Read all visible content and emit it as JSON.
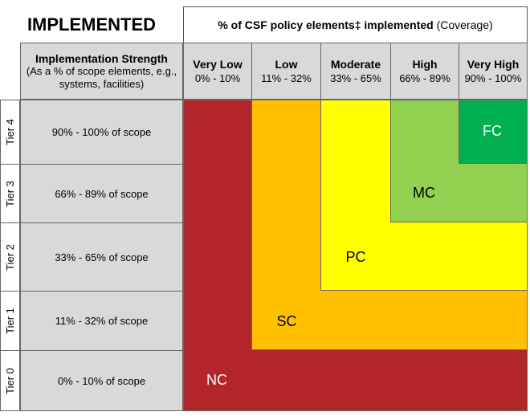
{
  "title": "IMPLEMENTED",
  "coverage": {
    "bold": "% of CSF policy elements‡ implemented",
    "normal": "(Coverage)"
  },
  "strength": {
    "title": "Implementation Strength",
    "subtitle": "(As a % of scope elements, e.g., systems, facilities)"
  },
  "columns": [
    {
      "label": "Very Low",
      "range": "0% - 10%"
    },
    {
      "label": "Low",
      "range": "11% - 32%"
    },
    {
      "label": "Moderate",
      "range": "33% - 65%"
    },
    {
      "label": "High",
      "range": "66% - 89%"
    },
    {
      "label": "Very High",
      "range": "90% - 100%"
    }
  ],
  "tiers": [
    {
      "label": "Tier 4",
      "scope": "90% - 100% of scope"
    },
    {
      "label": "Tier 3",
      "scope": "66% - 89%  of scope"
    },
    {
      "label": "Tier 2",
      "scope": "33% - 65%  of scope"
    },
    {
      "label": "Tier 1",
      "scope": "11% - 32%  of scope"
    },
    {
      "label": "Tier 0",
      "scope": "0% - 10%  of scope"
    }
  ],
  "levels": {
    "NC": "NC",
    "SC": "SC",
    "PC": "PC",
    "MC": "MC",
    "FC": "FC"
  },
  "colors": {
    "NC": "#b2262a",
    "SC": "#ffc000",
    "PC": "#ffff00",
    "MC": "#92d050",
    "FC": "#00b050"
  }
}
